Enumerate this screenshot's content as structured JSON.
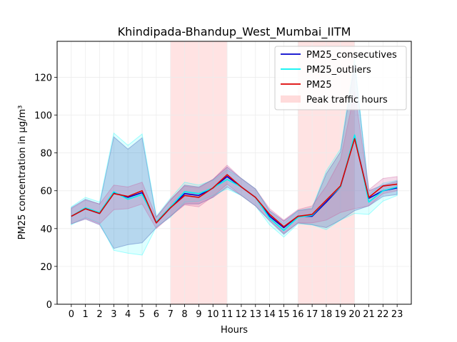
{
  "chart_data": {
    "type": "line",
    "title": "Khindipada-Bhandup_West_Mumbai_IITM",
    "xlabel": "Hours",
    "ylabel": "PM25 concentration in µg/m³",
    "x": [
      0,
      1,
      2,
      3,
      4,
      5,
      6,
      7,
      8,
      9,
      10,
      11,
      12,
      13,
      14,
      15,
      16,
      17,
      18,
      19,
      20,
      21,
      22,
      23
    ],
    "xlim": [
      -1,
      24
    ],
    "ylim": [
      0,
      139
    ],
    "yticks": [
      0,
      20,
      40,
      60,
      80,
      100,
      120
    ],
    "grid": true,
    "legend_position": "top-right",
    "series": [
      {
        "name": "PM25_consecutives",
        "color": "#0000cc",
        "values": [
          46.5,
          50.5,
          48.0,
          59.0,
          56.5,
          59.0,
          43.0,
          51.0,
          58.5,
          57.5,
          61.5,
          67.5,
          62.0,
          56.5,
          46.5,
          40.5,
          46.5,
          46.5,
          54.0,
          62.0,
          88.5,
          56.0,
          60.0,
          61.5
        ],
        "band_low": [
          42.5,
          45.0,
          42.0,
          29.5,
          31.5,
          32.5,
          40.5,
          46.5,
          53.0,
          53.0,
          56.5,
          62.0,
          57.5,
          52.0,
          44.0,
          37.0,
          43.0,
          42.0,
          40.5,
          44.5,
          49.5,
          52.0,
          57.0,
          58.0
        ],
        "band_high": [
          51.0,
          55.5,
          53.0,
          88.5,
          82.0,
          88.0,
          46.0,
          55.0,
          63.0,
          62.0,
          66.0,
          72.5,
          66.5,
          61.0,
          49.5,
          44.0,
          49.5,
          50.5,
          69.0,
          80.5,
          127.0,
          60.0,
          63.0,
          65.0
        ],
        "band_color": "#3333aa"
      },
      {
        "name": "PM25_outliers",
        "color": "#00f2f2",
        "values": [
          46.5,
          51.0,
          48.5,
          59.5,
          55.5,
          58.0,
          43.5,
          51.5,
          59.5,
          58.5,
          61.5,
          66.0,
          62.0,
          56.5,
          45.5,
          39.0,
          46.0,
          47.0,
          55.0,
          62.0,
          89.5,
          54.0,
          60.0,
          62.0
        ],
        "band_low": [
          42.0,
          46.0,
          43.0,
          28.5,
          27.0,
          26.0,
          41.0,
          46.0,
          54.0,
          54.5,
          57.5,
          61.0,
          57.5,
          52.0,
          42.0,
          35.5,
          42.5,
          42.0,
          39.5,
          44.5,
          48.0,
          47.5,
          54.5,
          57.5
        ],
        "band_high": [
          51.5,
          56.5,
          54.0,
          90.5,
          84.0,
          90.0,
          46.5,
          56.0,
          64.5,
          63.0,
          65.5,
          71.0,
          66.5,
          61.0,
          49.0,
          42.5,
          49.5,
          51.0,
          70.5,
          82.0,
          130.0,
          58.0,
          64.0,
          65.5
        ],
        "band_color": "#00ffff"
      },
      {
        "name": "PM25",
        "color": "#dd0000",
        "values": [
          46.5,
          50.5,
          48.0,
          58.5,
          57.0,
          60.0,
          43.0,
          51.0,
          57.5,
          56.5,
          61.5,
          68.5,
          62.0,
          56.5,
          47.5,
          41.0,
          46.5,
          47.5,
          55.0,
          62.5,
          87.5,
          56.5,
          62.5,
          63.5
        ],
        "band_low": [
          42.5,
          45.5,
          42.5,
          50.0,
          50.5,
          53.0,
          40.0,
          46.5,
          52.5,
          51.5,
          57.0,
          63.5,
          57.5,
          52.0,
          44.5,
          37.5,
          43.0,
          43.0,
          44.5,
          48.5,
          50.5,
          52.0,
          58.5,
          60.0
        ],
        "band_high": [
          50.5,
          55.0,
          53.0,
          63.0,
          62.0,
          64.5,
          46.0,
          55.5,
          62.5,
          61.5,
          66.0,
          73.5,
          66.5,
          61.0,
          50.5,
          44.5,
          50.0,
          52.0,
          62.5,
          76.5,
          112.5,
          60.5,
          66.5,
          67.5
        ],
        "band_color": "#cc5599"
      }
    ],
    "shaded_regions": [
      {
        "name": "Peak traffic hours",
        "x_start": 7,
        "x_end": 11,
        "color": "#ffcccc"
      },
      {
        "name": "Peak traffic hours",
        "x_start": 16,
        "x_end": 20,
        "color": "#ffcccc"
      }
    ],
    "legend": [
      {
        "label": "PM25_consecutives",
        "kind": "line",
        "color": "#0000cc"
      },
      {
        "label": "PM25_outliers",
        "kind": "line",
        "color": "#00f2f2"
      },
      {
        "label": "PM25",
        "kind": "line",
        "color": "#dd0000"
      },
      {
        "label": "Peak traffic hours",
        "kind": "patch",
        "color": "#ffcccc"
      }
    ]
  }
}
